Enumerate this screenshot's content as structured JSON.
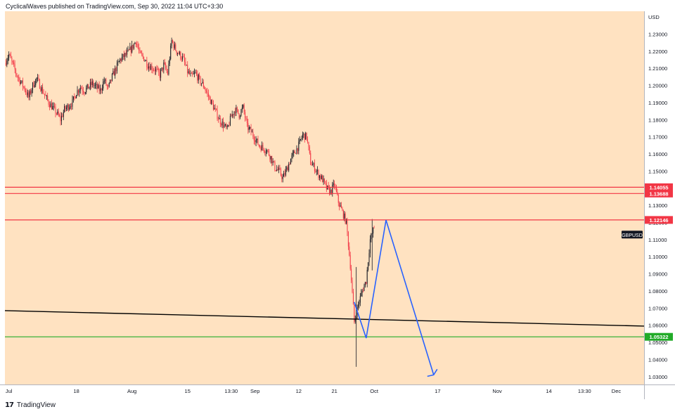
{
  "header": {
    "publisher": "CyclicalWaves published on TradingView.com, Sep 30, 2022 11:04 UTC+3:30"
  },
  "footer": {
    "brand": "TradingView",
    "brand_mark": "17"
  },
  "colors": {
    "background": "#ffe2c1",
    "up": "#131722",
    "down": "#f23645",
    "resistance": "#f23645",
    "support": "#22ab29",
    "trendline": "#000000",
    "projection": "#2962ff",
    "axis_text": "#131722"
  },
  "chart_data": {
    "type": "candlestick",
    "symbol": "GBPUSD",
    "currency": "USD",
    "y_axis": {
      "min": 1.0,
      "max": 1.24,
      "ticks": [
        1.23,
        1.22,
        1.21,
        1.2,
        1.19,
        1.18,
        1.17,
        1.16,
        1.15,
        1.14,
        1.13,
        1.12,
        1.11,
        1.1,
        1.09,
        1.08,
        1.07,
        1.06,
        1.05,
        1.04,
        1.03
      ],
      "tick_labels": [
        "1.23000",
        "1.22000",
        "1.21000",
        "1.20000",
        "1.19000",
        "1.18000",
        "1.17000",
        "1.16000",
        "1.15000",
        "1.14000",
        "1.13000",
        "1.12000",
        "1.11000",
        "1.10000",
        "1.09000",
        "1.08000",
        "1.07000",
        "1.06000",
        "1.05000",
        "1.04000",
        "1.03000"
      ]
    },
    "x_axis": {
      "range": [
        "2022-06-30",
        "2022-12-08"
      ],
      "ticks": [
        {
          "date": "2022-07-01",
          "label": "Jul"
        },
        {
          "date": "2022-07-18",
          "label": "18"
        },
        {
          "date": "2022-08-01",
          "label": "Aug"
        },
        {
          "date": "2022-08-15",
          "label": "15"
        },
        {
          "date": "2022-08-26",
          "label": "13:30"
        },
        {
          "date": "2022-09-01",
          "label": "Sep"
        },
        {
          "date": "2022-09-12",
          "label": "12"
        },
        {
          "date": "2022-09-21",
          "label": "21"
        },
        {
          "date": "2022-10-01",
          "label": "Oct"
        },
        {
          "date": "2022-10-17",
          "label": "17"
        },
        {
          "date": "2022-11-01",
          "label": "Nov"
        },
        {
          "date": "2022-11-14",
          "label": "14"
        },
        {
          "date": "2022-11-23",
          "label": "13:30"
        },
        {
          "date": "2022-12-01",
          "label": "Dec"
        }
      ]
    },
    "price_path": [
      [
        "2022-06-30",
        1.213
      ],
      [
        "2022-07-01",
        1.218
      ],
      [
        "2022-07-03",
        1.206
      ],
      [
        "2022-07-05",
        1.198
      ],
      [
        "2022-07-06",
        1.193
      ],
      [
        "2022-07-07",
        1.2
      ],
      [
        "2022-07-08",
        1.204
      ],
      [
        "2022-07-09",
        1.199
      ],
      [
        "2022-07-11",
        1.19
      ],
      [
        "2022-07-12",
        1.187
      ],
      [
        "2022-07-13",
        1.184
      ],
      [
        "2022-07-14",
        1.18
      ],
      [
        "2022-07-15",
        1.186
      ],
      [
        "2022-07-17",
        1.19
      ],
      [
        "2022-07-18",
        1.196
      ],
      [
        "2022-07-19",
        1.199
      ],
      [
        "2022-07-20",
        1.197
      ],
      [
        "2022-07-22",
        1.201
      ],
      [
        "2022-07-24",
        1.197
      ],
      [
        "2022-07-25",
        1.203
      ],
      [
        "2022-07-26",
        1.198
      ],
      [
        "2022-07-27",
        1.205
      ],
      [
        "2022-07-28",
        1.21
      ],
      [
        "2022-07-29",
        1.215
      ],
      [
        "2022-07-31",
        1.219
      ],
      [
        "2022-08-01",
        1.222
      ],
      [
        "2022-08-02",
        1.226
      ],
      [
        "2022-08-03",
        1.218
      ],
      [
        "2022-08-04",
        1.216
      ],
      [
        "2022-08-05",
        1.212
      ],
      [
        "2022-08-07",
        1.209
      ],
      [
        "2022-08-08",
        1.206
      ],
      [
        "2022-08-09",
        1.212
      ],
      [
        "2022-08-10",
        1.207
      ],
      [
        "2022-08-11",
        1.226
      ],
      [
        "2022-08-12",
        1.221
      ],
      [
        "2022-08-14",
        1.215
      ],
      [
        "2022-08-15",
        1.208
      ],
      [
        "2022-08-16",
        1.205
      ],
      [
        "2022-08-17",
        1.207
      ],
      [
        "2022-08-18",
        1.203
      ],
      [
        "2022-08-19",
        1.2
      ],
      [
        "2022-08-21",
        1.19
      ],
      [
        "2022-08-22",
        1.185
      ],
      [
        "2022-08-23",
        1.18
      ],
      [
        "2022-08-24",
        1.177
      ],
      [
        "2022-08-25",
        1.174
      ],
      [
        "2022-08-26",
        1.182
      ],
      [
        "2022-08-27",
        1.186
      ],
      [
        "2022-08-28",
        1.183
      ],
      [
        "2022-08-29",
        1.187
      ],
      [
        "2022-08-30",
        1.176
      ],
      [
        "2022-08-31",
        1.173
      ],
      [
        "2022-09-02",
        1.165
      ],
      [
        "2022-09-04",
        1.162
      ],
      [
        "2022-09-05",
        1.158
      ],
      [
        "2022-09-06",
        1.152
      ],
      [
        "2022-09-07",
        1.15
      ],
      [
        "2022-09-08",
        1.146
      ],
      [
        "2022-09-09",
        1.151
      ],
      [
        "2022-09-10",
        1.157
      ],
      [
        "2022-09-11",
        1.161
      ],
      [
        "2022-09-12",
        1.165
      ],
      [
        "2022-09-13",
        1.171
      ],
      [
        "2022-09-14",
        1.17
      ],
      [
        "2022-09-15",
        1.155
      ],
      [
        "2022-09-16",
        1.152
      ],
      [
        "2022-09-17",
        1.148
      ],
      [
        "2022-09-18",
        1.145
      ],
      [
        "2022-09-19",
        1.14
      ],
      [
        "2022-09-20",
        1.138
      ],
      [
        "2022-09-21",
        1.142
      ],
      [
        "2022-09-22",
        1.132
      ],
      [
        "2022-09-23",
        1.126
      ],
      [
        "2022-09-24",
        1.12
      ],
      [
        "2022-09-25",
        1.095
      ],
      [
        "2022-09-26",
        1.062
      ],
      [
        "2022-09-27",
        1.072
      ],
      [
        "2022-09-28",
        1.08
      ],
      [
        "2022-09-29",
        1.086
      ],
      [
        "2022-09-30",
        1.11
      ],
      [
        "2022-10-01",
        1.117
      ]
    ],
    "candle_extremes": [
      {
        "date": "2022-09-26",
        "low": 1.0357,
        "high": 1.094
      },
      {
        "date": "2022-09-30",
        "low": 1.092,
        "high": 1.122
      }
    ],
    "horizontal_levels": [
      {
        "value": 1.14055,
        "label": "1.14055",
        "role": "resistance"
      },
      {
        "value": 1.13688,
        "label": "1.13688",
        "role": "resistance"
      },
      {
        "value": 1.12146,
        "label": "1.12146",
        "role": "resistance"
      },
      {
        "value": 1.05322,
        "label": "1.05322",
        "role": "support"
      }
    ],
    "trendline": [
      [
        "2022-06-30",
        1.0685
      ],
      [
        "2022-12-08",
        1.0595
      ]
    ],
    "projection_path": [
      [
        "2022-09-26",
        1.0735
      ],
      [
        "2022-09-29",
        1.0525
      ],
      [
        "2022-10-04",
        1.1214
      ],
      [
        "2022-10-16",
        1.031
      ]
    ],
    "symbol_label": "GBPUSD",
    "current_price_label": "1.12146",
    "grid": false
  }
}
